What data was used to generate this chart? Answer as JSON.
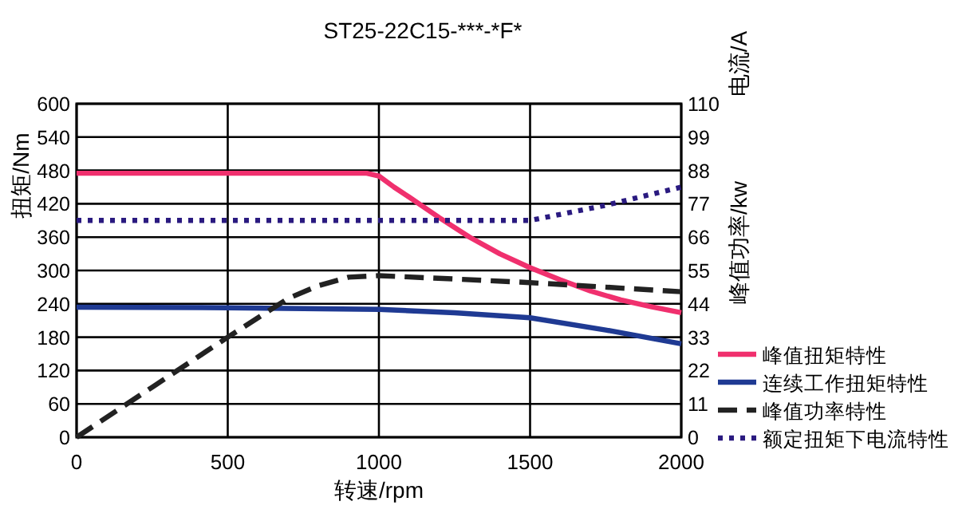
{
  "chart_data": {
    "type": "line",
    "title": "ST25-22C15-***-*F*",
    "xlabel": "转速/rpm",
    "ylabel": "扭矩/Nm",
    "y2label": "峰值功率/kw",
    "annotations": [
      "电流/A"
    ],
    "xlim": [
      0,
      2000
    ],
    "xticks": [
      0,
      500,
      1000,
      1500,
      2000
    ],
    "ylim": [
      0,
      600
    ],
    "yticks": [
      0,
      60,
      120,
      180,
      240,
      300,
      360,
      420,
      480,
      540,
      600
    ],
    "y2lim": [
      0,
      110
    ],
    "y2ticks": [
      0,
      11,
      22,
      33,
      44,
      55,
      66,
      77,
      88,
      99,
      110
    ],
    "grid": true,
    "legend": "right",
    "marker": "none",
    "series": [
      {
        "name": "峰值扭矩特性",
        "color": "#f0306e",
        "line_style": "solid",
        "x": [
          0,
          500,
          960,
          1000,
          1050,
          1100,
          1200,
          1300,
          1400,
          1500,
          1600,
          1700,
          1800,
          1900,
          2000
        ],
        "values": [
          475,
          475,
          475,
          470,
          450,
          432,
          395,
          360,
          330,
          305,
          283,
          263,
          247,
          235,
          224
        ]
      },
      {
        "name": "连续工作扭矩特性",
        "color": "#1f3a93",
        "line_style": "solid",
        "x": [
          0,
          500,
          1000,
          1250,
          1500,
          1750,
          2000
        ],
        "values": [
          234,
          233,
          230,
          224,
          215,
          193,
          168
        ]
      },
      {
        "name": "峰值功率特性",
        "color": "#222222",
        "line_style": "dashed",
        "axis": "y2",
        "x": [
          0,
          250,
          500,
          700,
          800,
          900,
          1000,
          1250,
          1500,
          1750,
          2000
        ],
        "values": [
          0,
          16.5,
          33,
          45.8,
          50,
          52.8,
          53.3,
          52.2,
          51,
          49.5,
          48
        ]
      },
      {
        "name": "额定扭矩下电流特性",
        "color": "#2a1a80",
        "line_style": "dotted",
        "axis": "y2",
        "x": [
          0,
          500,
          1000,
          1500,
          1750,
          2000
        ],
        "values": [
          71.5,
          71.5,
          71.5,
          71.5,
          76.5,
          82.5
        ]
      }
    ]
  }
}
